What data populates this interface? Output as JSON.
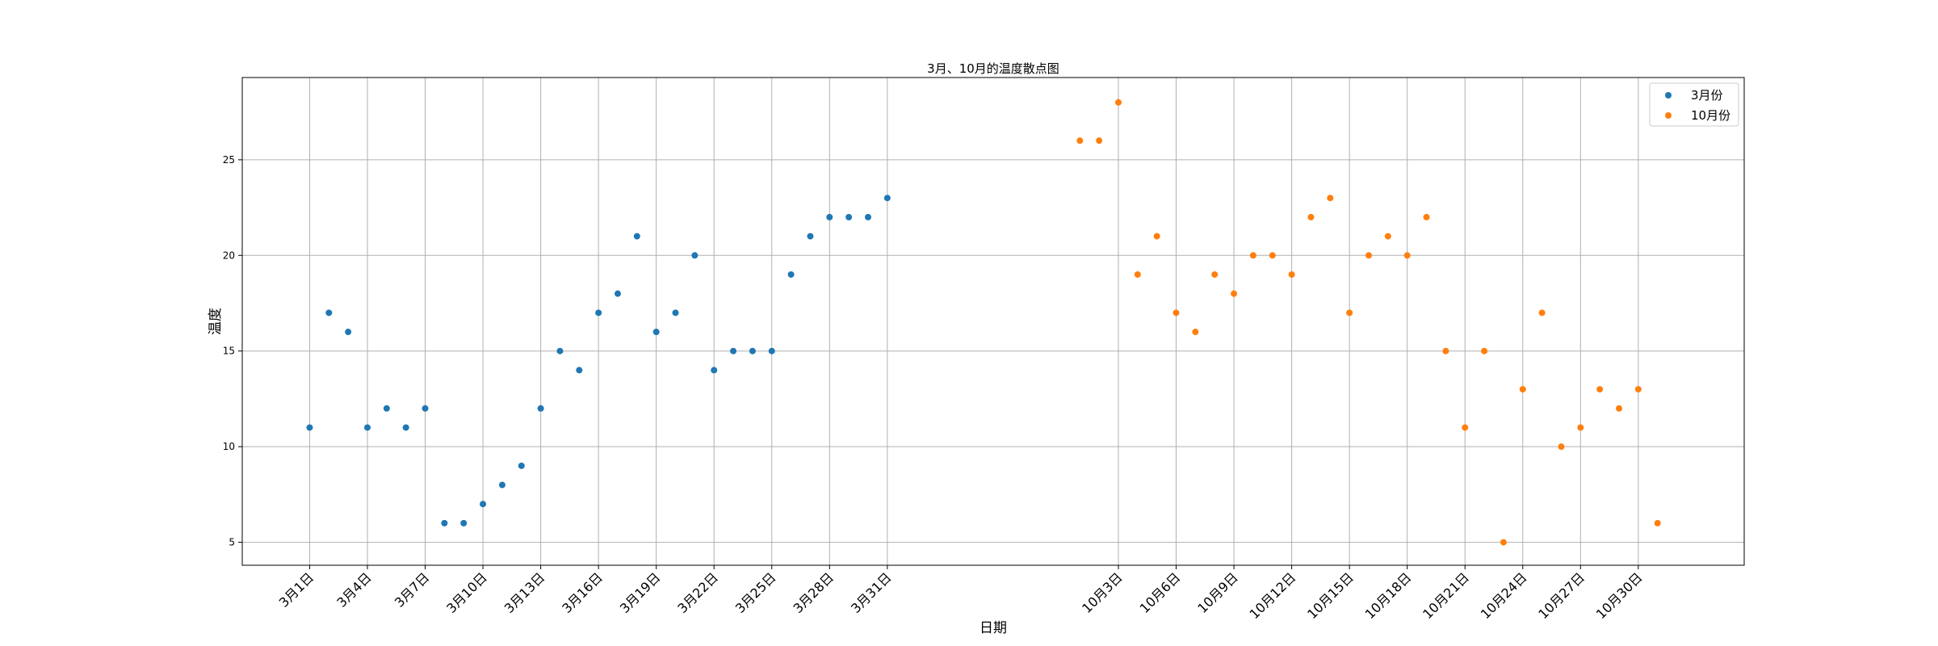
{
  "chart_data": {
    "type": "scatter",
    "title": "3月、10月的温度散点图",
    "xlabel": "日期",
    "ylabel": "温度",
    "ylim": [
      3.8,
      29.3
    ],
    "yticks": [
      5,
      10,
      15,
      20,
      25
    ],
    "grid": true,
    "legend_position": "top-right",
    "xlim": [
      -3.5,
      74.5
    ],
    "x_ticks": [
      {
        "x": 0,
        "label": "3月1日"
      },
      {
        "x": 3,
        "label": "3月4日"
      },
      {
        "x": 6,
        "label": "3月7日"
      },
      {
        "x": 9,
        "label": "3月10日"
      },
      {
        "x": 12,
        "label": "3月13日"
      },
      {
        "x": 15,
        "label": "3月16日"
      },
      {
        "x": 18,
        "label": "3月19日"
      },
      {
        "x": 21,
        "label": "3月22日"
      },
      {
        "x": 24,
        "label": "3月25日"
      },
      {
        "x": 27,
        "label": "3月28日"
      },
      {
        "x": 30,
        "label": "3月31日"
      },
      {
        "x": 42,
        "label": "10月3日"
      },
      {
        "x": 45,
        "label": "10月6日"
      },
      {
        "x": 48,
        "label": "10月9日"
      },
      {
        "x": 51,
        "label": "10月12日"
      },
      {
        "x": 54,
        "label": "10月15日"
      },
      {
        "x": 57,
        "label": "10月18日"
      },
      {
        "x": 60,
        "label": "10月21日"
      },
      {
        "x": 63,
        "label": "10月24日"
      },
      {
        "x": 66,
        "label": "10月27日"
      },
      {
        "x": 69,
        "label": "10月30日"
      }
    ],
    "series": [
      {
        "name": "3月份",
        "color": "#1f77b4",
        "x": [
          0,
          1,
          2,
          3,
          4,
          5,
          6,
          7,
          8,
          9,
          10,
          11,
          12,
          13,
          14,
          15,
          16,
          17,
          18,
          19,
          20,
          21,
          22,
          23,
          24,
          25,
          26,
          27,
          28,
          29,
          30
        ],
        "y": [
          11,
          17,
          16,
          11,
          12,
          11,
          12,
          6,
          6,
          7,
          8,
          9,
          12,
          15,
          14,
          17,
          18,
          21,
          16,
          17,
          20,
          14,
          15,
          15,
          15,
          19,
          21,
          22,
          22,
          22,
          23
        ]
      },
      {
        "name": "10月份",
        "color": "#ff7f0e",
        "x": [
          40,
          41,
          42,
          43,
          44,
          45,
          46,
          47,
          48,
          49,
          50,
          51,
          52,
          53,
          54,
          55,
          56,
          57,
          58,
          59,
          60,
          61,
          62,
          63,
          64,
          65,
          66,
          67,
          68,
          69,
          70
        ],
        "y": [
          26,
          26,
          28,
          19,
          21,
          17,
          16,
          19,
          18,
          20,
          20,
          19,
          22,
          23,
          17,
          20,
          21,
          20,
          22,
          15,
          11,
          15,
          5,
          13,
          17,
          10,
          11,
          13,
          12,
          13,
          6
        ]
      }
    ]
  }
}
